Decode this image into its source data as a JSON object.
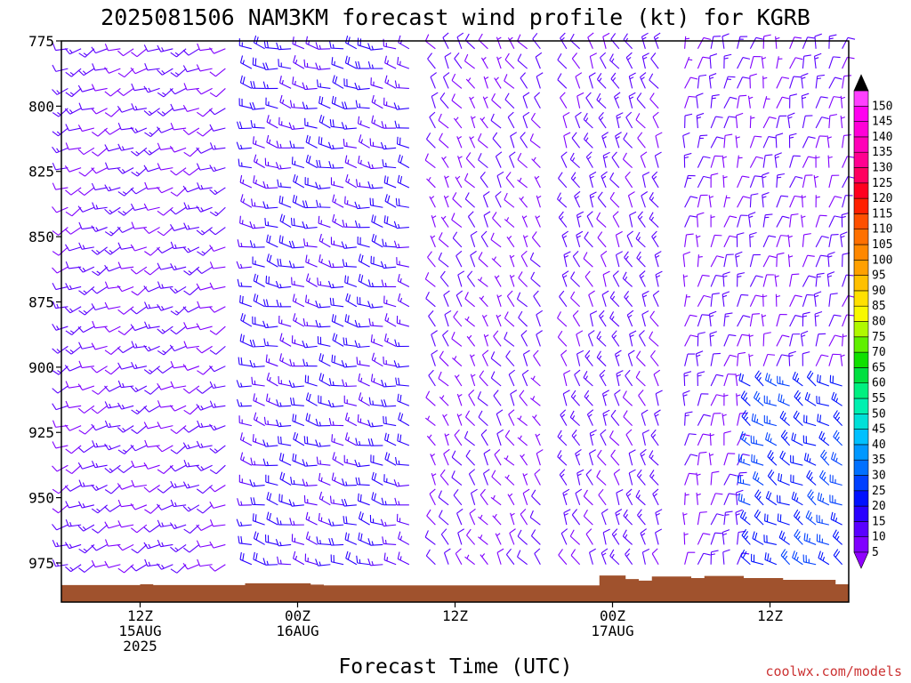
{
  "title": "2025081506 NAM3KM forecast wind profile (kt) for KGRB",
  "xlabel": "Forecast Time (UTC)",
  "credit": "coolwx.com/models",
  "chart_data": {
    "type": "wind-barb-time-height",
    "y_axis": {
      "label": "",
      "ticks": [
        "775",
        "800",
        "825",
        "850",
        "875",
        "900",
        "925",
        "950",
        "975"
      ],
      "range": [
        775,
        990
      ]
    },
    "x_axis": {
      "ticks": [
        {
          "hour": 6,
          "line1": "12Z",
          "line2": "15AUG",
          "line3": "2025"
        },
        {
          "hour": 18,
          "line1": "00Z",
          "line2": "16AUG",
          "line3": ""
        },
        {
          "hour": 30,
          "line1": "12Z",
          "line2": "",
          "line3": ""
        },
        {
          "hour": 42,
          "line1": "00Z",
          "line2": "17AUG",
          "line3": ""
        },
        {
          "hour": 54,
          "line1": "12Z",
          "line2": "",
          "line3": ""
        }
      ],
      "forecast_hours_range": [
        0,
        60
      ]
    },
    "colorbar": {
      "unit": "kt",
      "levels": [
        5,
        10,
        15,
        20,
        25,
        30,
        35,
        40,
        45,
        50,
        55,
        60,
        65,
        70,
        75,
        80,
        85,
        90,
        95,
        100,
        105,
        110,
        115,
        120,
        125,
        130,
        135,
        140,
        145,
        150
      ],
      "colors": [
        "#8000ff",
        "#5a00ff",
        "#2a00ff",
        "#0010ff",
        "#0040ff",
        "#0070ff",
        "#0098ff",
        "#00c0ff",
        "#00e0d8",
        "#00f0b0",
        "#00f080",
        "#00e040",
        "#10e000",
        "#60f000",
        "#b0f800",
        "#f8f800",
        "#ffe000",
        "#ffc000",
        "#ffa000",
        "#ff8800",
        "#ff7000",
        "#ff5000",
        "#ff2000",
        "#ff0020",
        "#ff0060",
        "#ff0090",
        "#ff00b8",
        "#ff00d8",
        "#ff00f0",
        "#ff40ff"
      ]
    },
    "terrain": {
      "color": "#a0522d",
      "surface_pressure_by_hour": [
        {
          "hour": 0,
          "p": 983.5
        },
        {
          "hour": 6,
          "p": 983.2
        },
        {
          "hour": 7,
          "p": 983.5
        },
        {
          "hour": 13,
          "p": 983.5
        },
        {
          "hour": 14,
          "p": 982.8
        },
        {
          "hour": 19,
          "p": 983.3
        },
        {
          "hour": 20,
          "p": 983.6
        },
        {
          "hour": 40,
          "p": 983.6
        },
        {
          "hour": 41,
          "p": 979.8
        },
        {
          "hour": 43,
          "p": 981.2
        },
        {
          "hour": 44,
          "p": 981.8
        },
        {
          "hour": 45,
          "p": 980.2
        },
        {
          "hour": 48,
          "p": 980.8
        },
        {
          "hour": 49,
          "p": 980.0
        },
        {
          "hour": 52,
          "p": 980.8
        },
        {
          "hour": 55,
          "p": 981.5
        },
        {
          "hour": 59,
          "p": 983.2
        },
        {
          "hour": 60,
          "p": 983.2
        }
      ]
    },
    "wind_regimes": [
      {
        "hours": [
          0,
          13
        ],
        "direction_deg": 245,
        "speed_kt": 11
      },
      {
        "hours": [
          14,
          27
        ],
        "direction_deg": 282,
        "speed_kt": 16
      },
      {
        "hours": [
          28,
          37
        ],
        "direction_deg": 325,
        "speed_kt": 9
      },
      {
        "hours": [
          38,
          46
        ],
        "direction_deg": 330,
        "speed_kt": 12
      },
      {
        "hours": [
          47,
          60
        ],
        "direction_deg": 10,
        "speed_kt": 10
      },
      {
        "hours": [
          52,
          60
        ],
        "direction_deg": 300,
        "speed_kt": 24,
        "levels": [
          900,
          985
        ]
      }
    ]
  }
}
